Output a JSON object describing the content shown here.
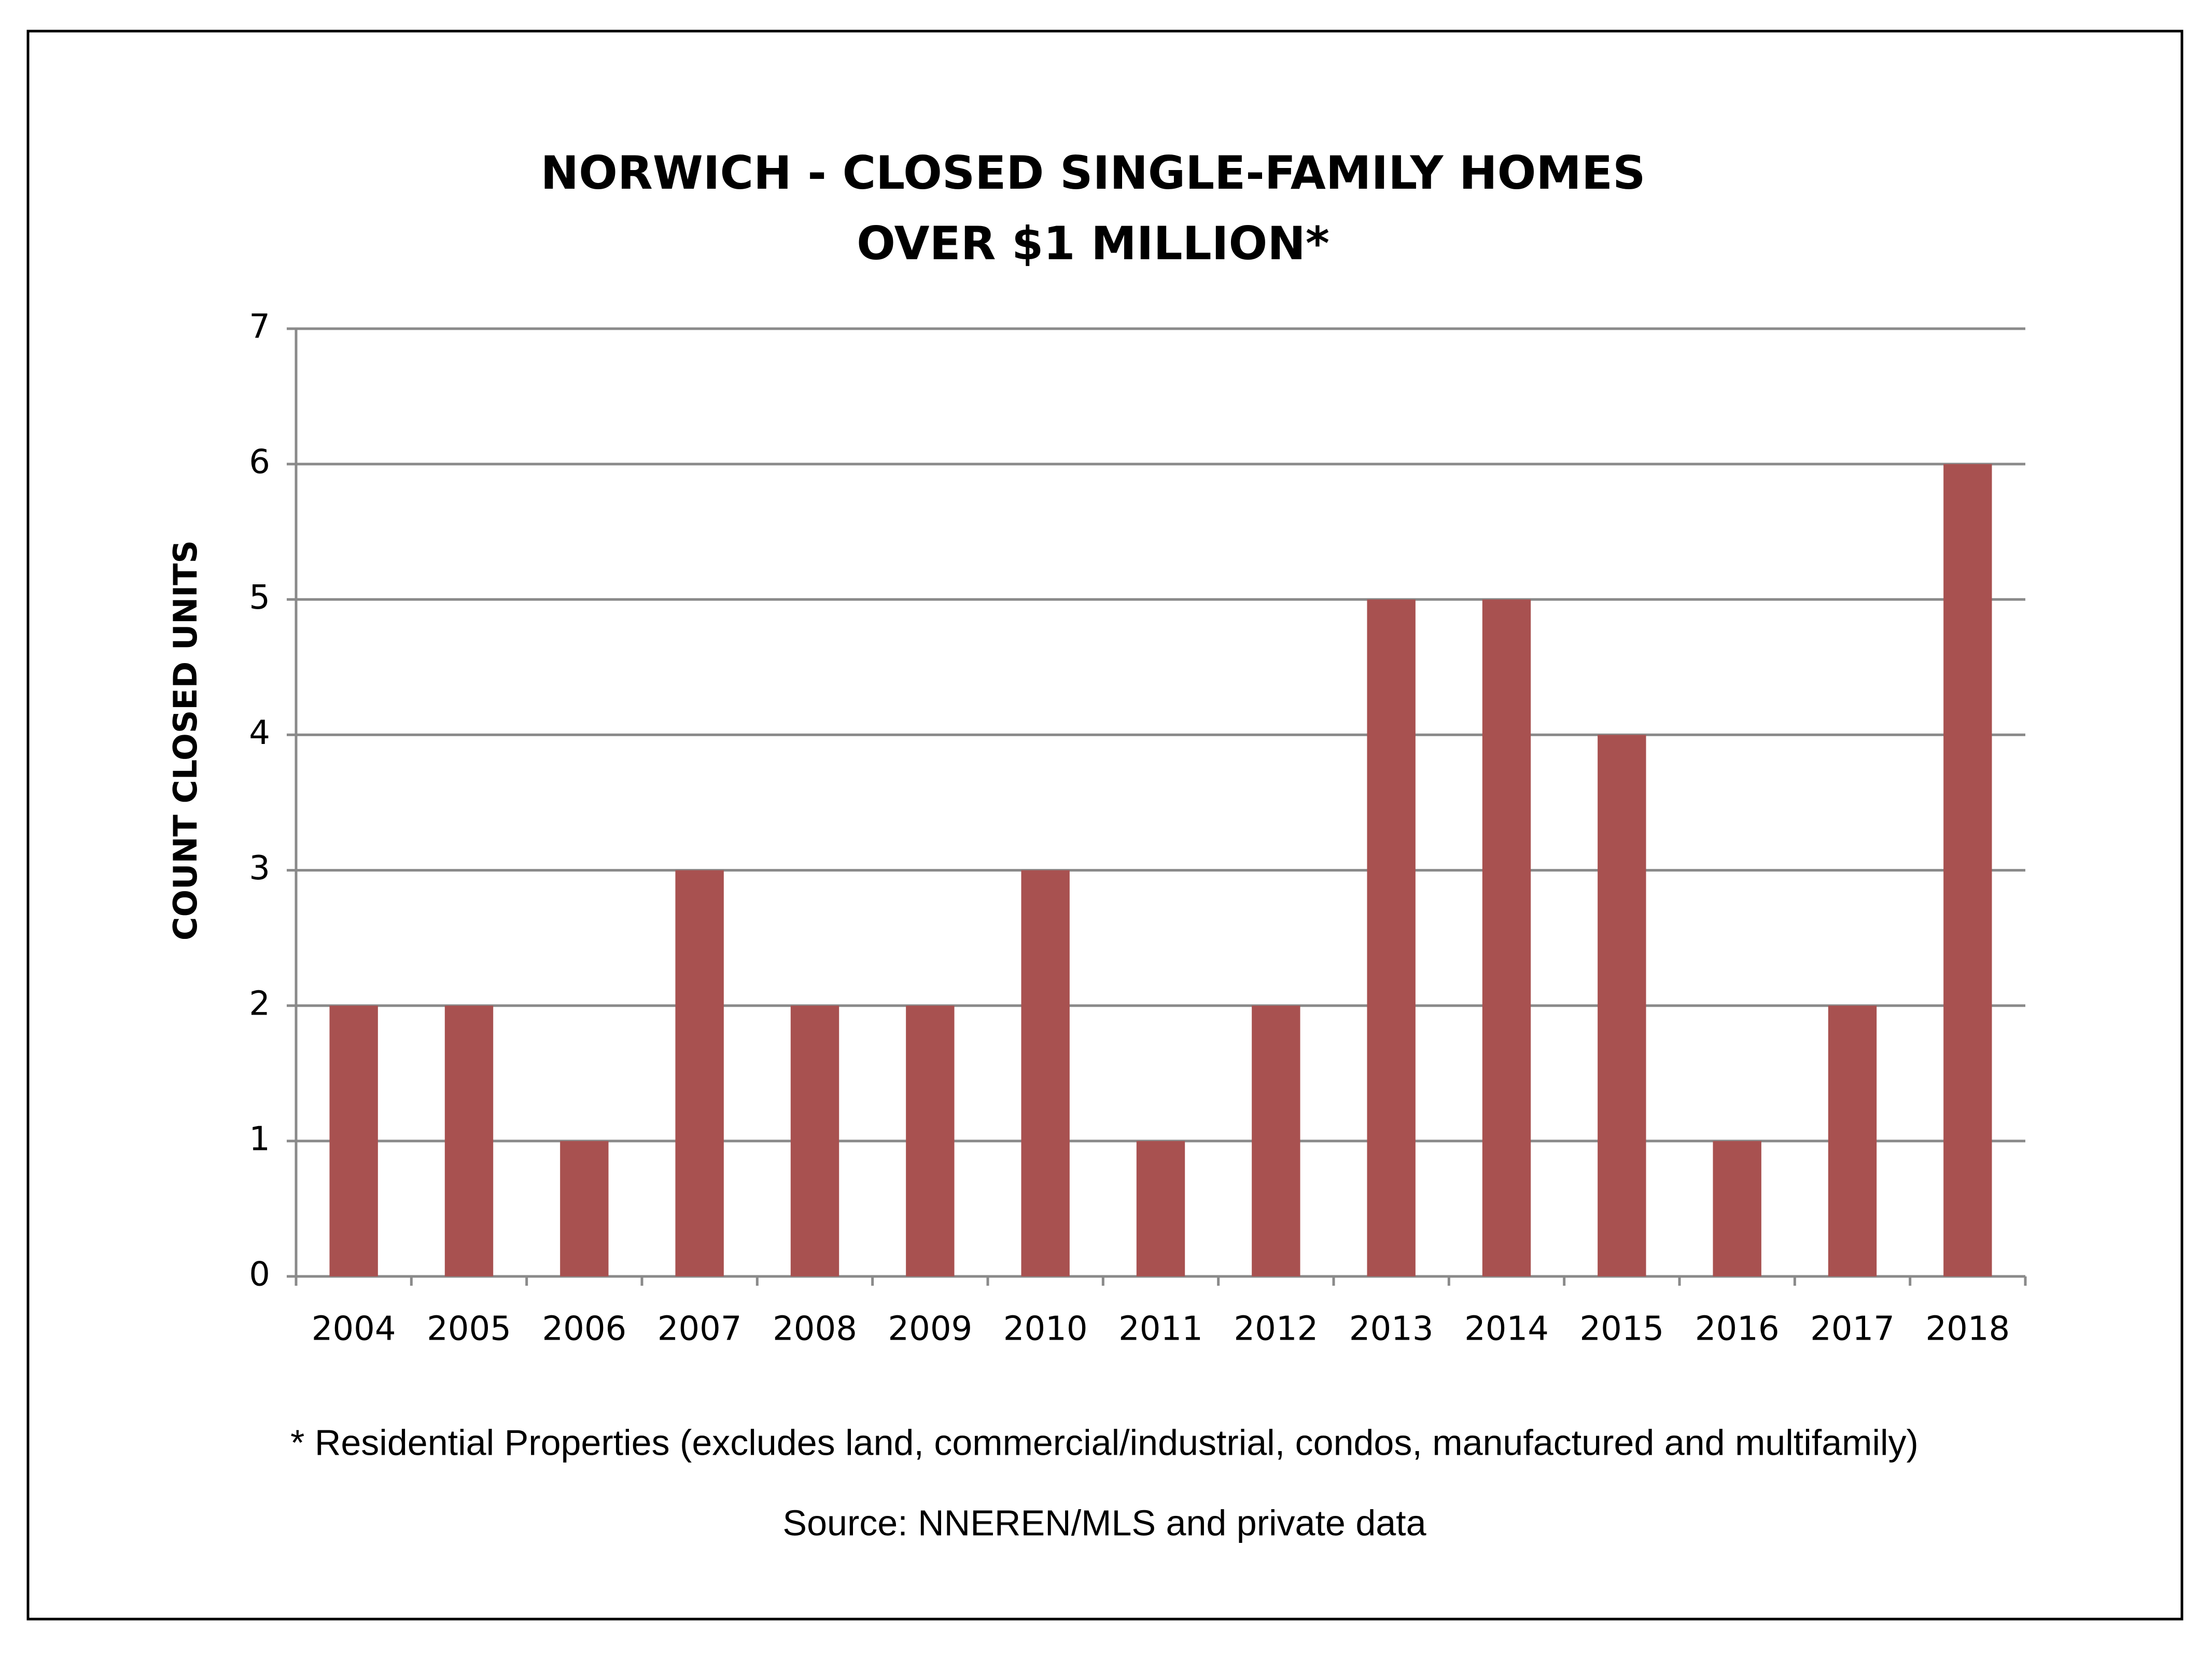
{
  "chart_data": {
    "type": "bar",
    "title": [
      "NORWICH - CLOSED SINGLE-FAMILY HOMES",
      "OVER $1 MILLION*"
    ],
    "y_label": "COUNT CLOSED UNITS",
    "categories": [
      "2004",
      "2005",
      "2006",
      "2007",
      "2008",
      "2009",
      "2010",
      "2011",
      "2012",
      "2013",
      "2014",
      "2015",
      "2016",
      "2017",
      "2018"
    ],
    "values": [
      2,
      2,
      1,
      3,
      2,
      2,
      3,
      1,
      2,
      5,
      5,
      4,
      1,
      2,
      6
    ],
    "color": "#a85150",
    "ylim": [
      0,
      7
    ],
    "yticks": [
      0,
      1,
      2,
      3,
      4,
      5,
      6,
      7
    ],
    "grid": true,
    "notes": [
      "* Residential Properties (excludes land, commercial/industrial, condos, manufactured and multifamily)",
      "Source: NNEREN/MLS and private data"
    ]
  }
}
